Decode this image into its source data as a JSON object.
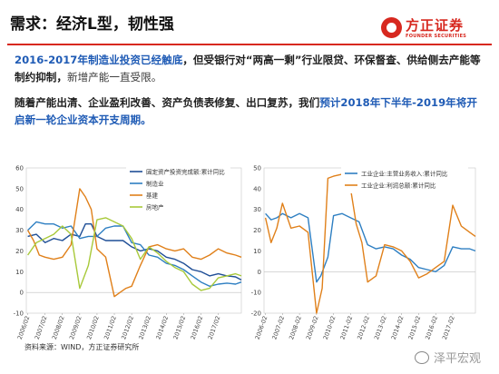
{
  "slide": {
    "title": "需求：经济L型，韧性强",
    "logo": {
      "name": "方正证券",
      "sub": "FOUNDER SECURITIES"
    },
    "para1": {
      "blue": "2016-2017年制造业投资已经触底",
      "rest": "，但受银行对“两高一剩”行业限贷、环保督查、供给侧去产能等制约抑制，",
      "muted": "新增产能一直受限。"
    },
    "para2": {
      "dark": "随着产能出清、企业盈利改善、资产负债表修复、出口复苏，我们",
      "blue": "预计2018年下半年-2019年将开启新一轮企业资本开支周期。"
    },
    "source": "资料来源：WIND，方正证券研究所",
    "watermark": "泽平宏观"
  },
  "chart_data": [
    {
      "type": "line",
      "ylim": [
        -10,
        60
      ],
      "yticks": [
        "-10",
        "0",
        "10",
        "20",
        "30",
        "40",
        "50",
        "60"
      ],
      "x_ticks": [
        "2006/02",
        "2007/02",
        "2008/02",
        "2009/02",
        "2010/02",
        "2011/02",
        "2012/02",
        "2013/02",
        "2014/02",
        "2015/02",
        "2016/02",
        "2017/02"
      ],
      "x_range": [
        "2006-01",
        "2018-06"
      ],
      "legend_position": "top-right",
      "grid": false,
      "series": [
        {
          "name": "固定资产投资完成额:累计同比",
          "color": "#1f4e96",
          "points": [
            [
              "2006-02",
              27
            ],
            [
              "2006-08",
              28
            ],
            [
              "2007-02",
              24
            ],
            [
              "2007-08",
              26
            ],
            [
              "2008-02",
              25
            ],
            [
              "2008-08",
              28
            ],
            [
              "2009-02",
              27
            ],
            [
              "2009-06",
              33
            ],
            [
              "2009-10",
              33
            ],
            [
              "2010-02",
              27
            ],
            [
              "2010-08",
              25
            ],
            [
              "2011-02",
              25
            ],
            [
              "2011-08",
              25
            ],
            [
              "2012-02",
              22
            ],
            [
              "2012-08",
              20
            ],
            [
              "2013-02",
              21
            ],
            [
              "2013-08",
              20
            ],
            [
              "2014-02",
              17
            ],
            [
              "2014-08",
              16
            ],
            [
              "2015-02",
              14
            ],
            [
              "2015-08",
              11
            ],
            [
              "2016-02",
              10
            ],
            [
              "2016-08",
              8
            ],
            [
              "2017-02",
              9
            ],
            [
              "2017-08",
              8
            ],
            [
              "2018-02",
              7.5
            ],
            [
              "2018-06",
              6
            ]
          ]
        },
        {
          "name": "制造业",
          "color": "#2e7fc2",
          "points": [
            [
              "2006-02",
              30
            ],
            [
              "2006-08",
              34
            ],
            [
              "2007-02",
              33
            ],
            [
              "2007-08",
              33
            ],
            [
              "2008-02",
              31
            ],
            [
              "2008-08",
              32
            ],
            [
              "2009-02",
              26
            ],
            [
              "2009-08",
              27
            ],
            [
              "2010-02",
              27
            ],
            [
              "2010-08",
              31
            ],
            [
              "2011-02",
              32
            ],
            [
              "2011-08",
              32
            ],
            [
              "2012-02",
              24
            ],
            [
              "2012-08",
              23
            ],
            [
              "2013-02",
              18
            ],
            [
              "2013-08",
              17
            ],
            [
              "2014-02",
              14
            ],
            [
              "2014-08",
              13
            ],
            [
              "2015-02",
              11
            ],
            [
              "2015-08",
              8
            ],
            [
              "2016-02",
              5
            ],
            [
              "2016-08",
              3
            ],
            [
              "2017-02",
              4
            ],
            [
              "2017-08",
              4.5
            ],
            [
              "2018-02",
              4
            ],
            [
              "2018-06",
              5
            ]
          ]
        },
        {
          "name": "基建",
          "color": "#e0801a",
          "points": [
            [
              "2006-02",
              30
            ],
            [
              "2006-06",
              25
            ],
            [
              "2006-10",
              18
            ],
            [
              "2007-02",
              17
            ],
            [
              "2007-08",
              16
            ],
            [
              "2008-02",
              17
            ],
            [
              "2008-08",
              23
            ],
            [
              "2009-02",
              50
            ],
            [
              "2009-06",
              46
            ],
            [
              "2009-10",
              40
            ],
            [
              "2010-02",
              21
            ],
            [
              "2010-08",
              17
            ],
            [
              "2011-02",
              -2
            ],
            [
              "2011-06",
              0
            ],
            [
              "2011-10",
              2
            ],
            [
              "2012-02",
              3
            ],
            [
              "2012-08",
              13
            ],
            [
              "2013-02",
              22
            ],
            [
              "2013-08",
              23
            ],
            [
              "2014-02",
              21
            ],
            [
              "2014-08",
              20
            ],
            [
              "2015-02",
              21
            ],
            [
              "2015-08",
              17
            ],
            [
              "2016-02",
              16
            ],
            [
              "2016-08",
              18
            ],
            [
              "2017-02",
              21
            ],
            [
              "2017-08",
              19
            ],
            [
              "2018-02",
              18
            ],
            [
              "2018-06",
              17
            ]
          ]
        },
        {
          "name": "房地产",
          "color": "#a8c93a",
          "points": [
            [
              "2006-02",
              18
            ],
            [
              "2006-08",
              24
            ],
            [
              "2007-02",
              26
            ],
            [
              "2007-08",
              28
            ],
            [
              "2008-02",
              32
            ],
            [
              "2008-08",
              28
            ],
            [
              "2009-02",
              2
            ],
            [
              "2009-08",
              13
            ],
            [
              "2010-02",
              35
            ],
            [
              "2010-08",
              36
            ],
            [
              "2011-02",
              34
            ],
            [
              "2011-08",
              32
            ],
            [
              "2012-02",
              26
            ],
            [
              "2012-08",
              16
            ],
            [
              "2013-02",
              22
            ],
            [
              "2013-08",
              19
            ],
            [
              "2014-02",
              15
            ],
            [
              "2014-08",
              12
            ],
            [
              "2015-02",
              10
            ],
            [
              "2015-08",
              4
            ],
            [
              "2016-02",
              1
            ],
            [
              "2016-08",
              2
            ],
            [
              "2017-02",
              7
            ],
            [
              "2017-08",
              8
            ],
            [
              "2018-02",
              9
            ],
            [
              "2018-06",
              8
            ]
          ]
        }
      ]
    },
    {
      "type": "line",
      "ylim": [
        -20,
        50
      ],
      "yticks": [
        "-20",
        "-10",
        "0",
        "10",
        "20",
        "30",
        "40",
        "50"
      ],
      "x_ticks": [
        "2006-02",
        "2007-02",
        "2008-02",
        "2009-02",
        "2010-02",
        "2011-02",
        "2012-02",
        "2013-02",
        "2014-02",
        "2015-02",
        "2016-02",
        "2017-02"
      ],
      "x_range": [
        "2006-01",
        "2018-06"
      ],
      "legend_position": "top-right",
      "grid": false,
      "series": [
        {
          "name": "工业企业:主营业务收入:累计同比",
          "color": "#2e7fc2",
          "points": [
            [
              "2006-02",
              28
            ],
            [
              "2006-06",
              25
            ],
            [
              "2006-10",
              26
            ],
            [
              "2007-02",
              28
            ],
            [
              "2007-08",
              26
            ],
            [
              "2008-02",
              28
            ],
            [
              "2008-08",
              26
            ],
            [
              "2009-02",
              -5
            ],
            [
              "2009-05",
              -2
            ],
            [
              "2009-10",
              7
            ],
            [
              "2010-02",
              27
            ],
            [
              "2010-08",
              28
            ],
            [
              "2011-02",
              26
            ],
            [
              "2011-08",
              24
            ],
            [
              "2012-02",
              13
            ],
            [
              "2012-08",
              11
            ],
            [
              "2013-02",
              12
            ],
            [
              "2013-08",
              11
            ],
            [
              "2014-02",
              8
            ],
            [
              "2014-08",
              6
            ],
            [
              "2015-02",
              2
            ],
            [
              "2015-08",
              1
            ],
            [
              "2016-02",
              0
            ],
            [
              "2016-08",
              3
            ],
            [
              "2017-02",
              12
            ],
            [
              "2017-08",
              11
            ],
            [
              "2018-02",
              11
            ],
            [
              "2018-06",
              10
            ]
          ]
        },
        {
          "name": "工业企业:利润总额:累计同比",
          "color": "#e0801a",
          "points": [
            [
              "2006-02",
              26
            ],
            [
              "2006-06",
              14
            ],
            [
              "2006-10",
              21
            ],
            [
              "2007-02",
              33
            ],
            [
              "2007-08",
              21
            ],
            [
              "2008-02",
              22
            ],
            [
              "2008-08",
              19
            ],
            [
              "2009-02",
              -20
            ],
            [
              "2009-06",
              -8
            ],
            [
              "2009-10",
              45
            ],
            [
              "2010-02",
              46
            ],
            [
              "2010-08",
              47
            ],
            [
              "2011-02",
              40
            ],
            [
              "2011-06",
              23
            ],
            [
              "2011-10",
              14
            ],
            [
              "2012-02",
              -5
            ],
            [
              "2012-08",
              -2
            ],
            [
              "2013-02",
              13
            ],
            [
              "2013-08",
              12
            ],
            [
              "2014-02",
              10
            ],
            [
              "2014-08",
              5
            ],
            [
              "2015-02",
              -3
            ],
            [
              "2015-08",
              -1
            ],
            [
              "2016-02",
              2
            ],
            [
              "2016-08",
              5
            ],
            [
              "2017-02",
              32
            ],
            [
              "2017-08",
              22
            ],
            [
              "2018-02",
              19
            ],
            [
              "2018-06",
              17
            ]
          ]
        }
      ]
    }
  ]
}
